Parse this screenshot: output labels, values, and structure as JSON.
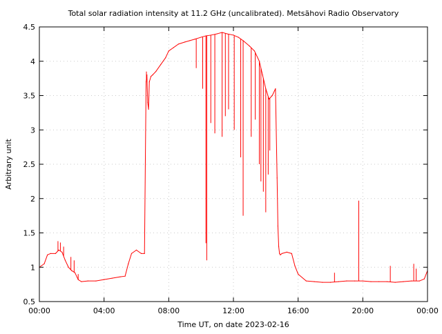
{
  "chart_data": {
    "type": "line",
    "title": "Total solar radiation intensity at 11.2 GHz (uncalibrated). Metsähovi Radio Observatory",
    "xlabel": "Time UT, on date 2023-02-16",
    "ylabel": "Arbitrary unit",
    "x_unit": "hours UT",
    "xlim": [
      0,
      24
    ],
    "ylim": [
      0.5,
      4.5
    ],
    "x_ticks": [
      {
        "value": 0,
        "label": "00:00"
      },
      {
        "value": 4,
        "label": "04:00"
      },
      {
        "value": 8,
        "label": "08:00"
      },
      {
        "value": 12,
        "label": "12:00"
      },
      {
        "value": 16,
        "label": "16:00"
      },
      {
        "value": 20,
        "label": "20:00"
      },
      {
        "value": 24,
        "label": "00:00"
      }
    ],
    "y_ticks": [
      {
        "value": 0.5,
        "label": "0.5"
      },
      {
        "value": 1,
        "label": "1"
      },
      {
        "value": 1.5,
        "label": "1.5"
      },
      {
        "value": 2,
        "label": "2"
      },
      {
        "value": 2.5,
        "label": "2.5"
      },
      {
        "value": 3,
        "label": "3"
      },
      {
        "value": 3.5,
        "label": "3.5"
      },
      {
        "value": 4,
        "label": "4"
      },
      {
        "value": 4.5,
        "label": "4.5"
      }
    ],
    "grid": true,
    "series_color": "#ff0000",
    "series": [
      {
        "x": [
          0,
          0.3,
          0.5,
          0.7,
          1.0,
          1.2,
          1.4,
          1.6,
          1.8,
          2.0,
          2.2,
          2.4,
          2.6,
          3.0,
          3.5,
          4.0,
          4.5,
          5.0,
          5.3,
          5.5,
          5.7,
          6.0,
          6.3,
          6.5,
          6.6,
          6.65,
          6.7,
          6.75,
          6.8,
          6.9,
          7.0,
          7.2,
          7.5,
          7.8,
          8.0,
          8.3,
          8.6,
          9.0,
          9.3,
          9.6,
          10.0,
          10.3,
          10.6,
          11.0,
          11.3,
          11.6,
          12.0,
          12.3,
          12.6,
          13.0,
          13.3,
          13.6,
          13.8,
          14.0,
          14.2,
          14.4,
          14.6,
          14.7,
          14.75,
          14.8,
          14.85,
          14.9,
          15.0,
          15.3,
          15.6,
          15.8,
          16.0,
          16.5,
          17.0,
          17.5,
          18.0,
          18.5,
          19.0,
          19.5,
          20.0,
          20.5,
          21.0,
          21.5,
          22.0,
          22.5,
          23.0,
          23.5,
          23.8,
          24.0
        ],
        "values": [
          1.0,
          1.05,
          1.18,
          1.2,
          1.2,
          1.25,
          1.22,
          1.1,
          1.0,
          0.95,
          0.92,
          0.82,
          0.79,
          0.8,
          0.8,
          0.82,
          0.84,
          0.86,
          0.87,
          1.05,
          1.2,
          1.25,
          1.2,
          1.2,
          3.7,
          3.8,
          3.4,
          3.3,
          3.7,
          3.78,
          3.8,
          3.85,
          3.95,
          4.05,
          4.15,
          4.2,
          4.25,
          4.28,
          4.3,
          4.32,
          4.35,
          4.37,
          4.38,
          4.4,
          4.42,
          4.4,
          4.38,
          4.35,
          4.3,
          4.22,
          4.15,
          4.0,
          3.8,
          3.6,
          3.45,
          3.5,
          3.6,
          2.3,
          1.6,
          1.3,
          1.2,
          1.18,
          1.2,
          1.22,
          1.2,
          1.02,
          0.9,
          0.8,
          0.79,
          0.78,
          0.78,
          0.79,
          0.8,
          0.8,
          0.8,
          0.79,
          0.79,
          0.79,
          0.78,
          0.79,
          0.8,
          0.8,
          0.83,
          0.95
        ],
        "spikes": [
          {
            "x": 1.15,
            "value": 1.38
          },
          {
            "x": 1.3,
            "value": 1.36
          },
          {
            "x": 1.5,
            "value": 1.3
          },
          {
            "x": 1.95,
            "value": 1.15
          },
          {
            "x": 2.15,
            "value": 1.1
          },
          {
            "x": 2.4,
            "value": 0.9
          },
          {
            "x": 6.62,
            "value": 3.85
          },
          {
            "x": 9.7,
            "value": 3.9
          },
          {
            "x": 10.1,
            "value": 3.6
          },
          {
            "x": 10.3,
            "value": 1.35
          },
          {
            "x": 10.35,
            "value": 1.1
          },
          {
            "x": 10.6,
            "value": 3.1
          },
          {
            "x": 10.85,
            "value": 2.95
          },
          {
            "x": 11.3,
            "value": 2.9
          },
          {
            "x": 11.5,
            "value": 3.2
          },
          {
            "x": 11.7,
            "value": 3.3
          },
          {
            "x": 12.05,
            "value": 3.0
          },
          {
            "x": 12.45,
            "value": 2.6
          },
          {
            "x": 12.6,
            "value": 1.75
          },
          {
            "x": 13.1,
            "value": 2.9
          },
          {
            "x": 13.35,
            "value": 3.15
          },
          {
            "x": 13.6,
            "value": 2.5
          },
          {
            "x": 13.7,
            "value": 2.25
          },
          {
            "x": 13.85,
            "value": 2.1
          },
          {
            "x": 14.0,
            "value": 1.8
          },
          {
            "x": 14.15,
            "value": 2.35
          },
          {
            "x": 14.25,
            "value": 2.7
          },
          {
            "x": 18.25,
            "value": 0.92
          },
          {
            "x": 19.75,
            "value": 1.97
          },
          {
            "x": 21.7,
            "value": 1.02
          },
          {
            "x": 23.15,
            "value": 1.05
          },
          {
            "x": 23.3,
            "value": 0.98
          }
        ]
      }
    ]
  }
}
